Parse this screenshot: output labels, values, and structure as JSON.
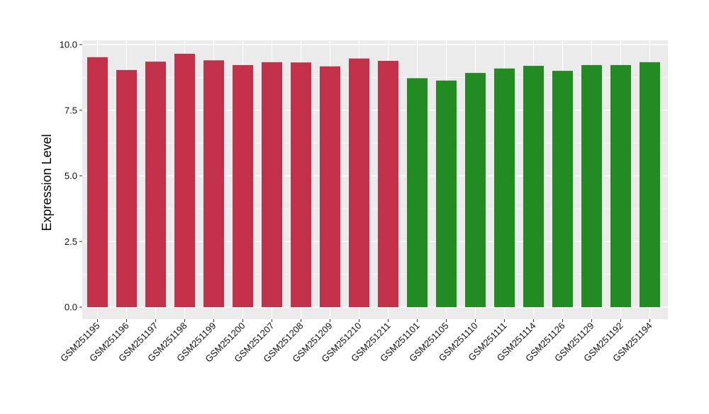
{
  "chart_data": {
    "type": "bar",
    "title": "",
    "xlabel": "",
    "ylabel": "Expression Level",
    "ylim": [
      0,
      10
    ],
    "yticks": [
      "0.0",
      "2.5",
      "5.0",
      "7.5",
      "10.0"
    ],
    "categories": [
      "GSM251195",
      "GSM251196",
      "GSM251197",
      "GSM251198",
      "GSM251199",
      "GSM251200",
      "GSM251207",
      "GSM251208",
      "GSM251209",
      "GSM251210",
      "GSM251211",
      "GSM251101",
      "GSM251105",
      "GSM251110",
      "GSM251111",
      "GSM251114",
      "GSM251126",
      "GSM251129",
      "GSM251192",
      "GSM251194"
    ],
    "values": [
      9.52,
      9.03,
      9.35,
      9.65,
      9.4,
      9.22,
      9.33,
      9.32,
      9.17,
      9.47,
      9.38,
      8.72,
      8.63,
      8.92,
      9.09,
      9.19,
      9.0,
      9.22,
      9.22,
      9.33
    ],
    "groups": [
      "a",
      "a",
      "a",
      "a",
      "a",
      "a",
      "a",
      "a",
      "a",
      "a",
      "a",
      "b",
      "b",
      "b",
      "b",
      "b",
      "b",
      "b",
      "b",
      "b"
    ],
    "group_colors": {
      "a": "#c3304a",
      "b": "#228b22"
    },
    "grid": true,
    "legend": "none",
    "panel_background": "#ebebeb",
    "gridline_color": "#ffffff"
  }
}
